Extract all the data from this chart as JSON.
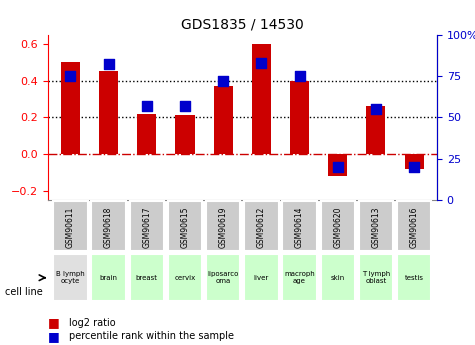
{
  "title": "GDS1835 / 14530",
  "gsm_labels": [
    "GSM90611",
    "GSM90618",
    "GSM90617",
    "GSM90615",
    "GSM90619",
    "GSM90612",
    "GSM90614",
    "GSM90620",
    "GSM90613",
    "GSM90616"
  ],
  "cell_lines": [
    "B lymph\nocyte",
    "brain",
    "breast",
    "cervix",
    "liposarco\noma",
    "liver",
    "macroph\nage",
    "skin",
    "T lymph\noblast",
    "testis"
  ],
  "log2_ratio": [
    0.5,
    0.45,
    0.22,
    0.21,
    0.37,
    0.6,
    0.4,
    -0.12,
    0.26,
    -0.08
  ],
  "percentile_rank": [
    75,
    82,
    57,
    57,
    72,
    83,
    75,
    20,
    55,
    20
  ],
  "bar_color": "#cc0000",
  "dot_color": "#0000cc",
  "bar_width": 0.5,
  "ylim_left": [
    -0.25,
    0.65
  ],
  "ylim_right": [
    0,
    100
  ],
  "yticks_left": [
    -0.2,
    0.0,
    0.2,
    0.4,
    0.6
  ],
  "yticks_right": [
    0,
    25,
    50,
    75,
    100
  ],
  "ytick_labels_right": [
    "0",
    "25",
    "50",
    "75",
    "100%"
  ],
  "hline_dotted": [
    0.2,
    0.4
  ],
  "hline_dashed": 0.0,
  "grid_color": "#000000",
  "dashed_color": "#cc0000",
  "cell_line_colors": [
    "#e0e0e0",
    "#ccffcc",
    "#ccffcc",
    "#ccffcc",
    "#ccffcc",
    "#ccffcc",
    "#ccffcc",
    "#ccffcc",
    "#ccffcc",
    "#ccffcc"
  ],
  "gsm_bg_color": "#cccccc",
  "legend_red": "log2 ratio",
  "legend_blue": "percentile rank within the sample",
  "cell_line_label": "cell line",
  "dot_size": 50
}
